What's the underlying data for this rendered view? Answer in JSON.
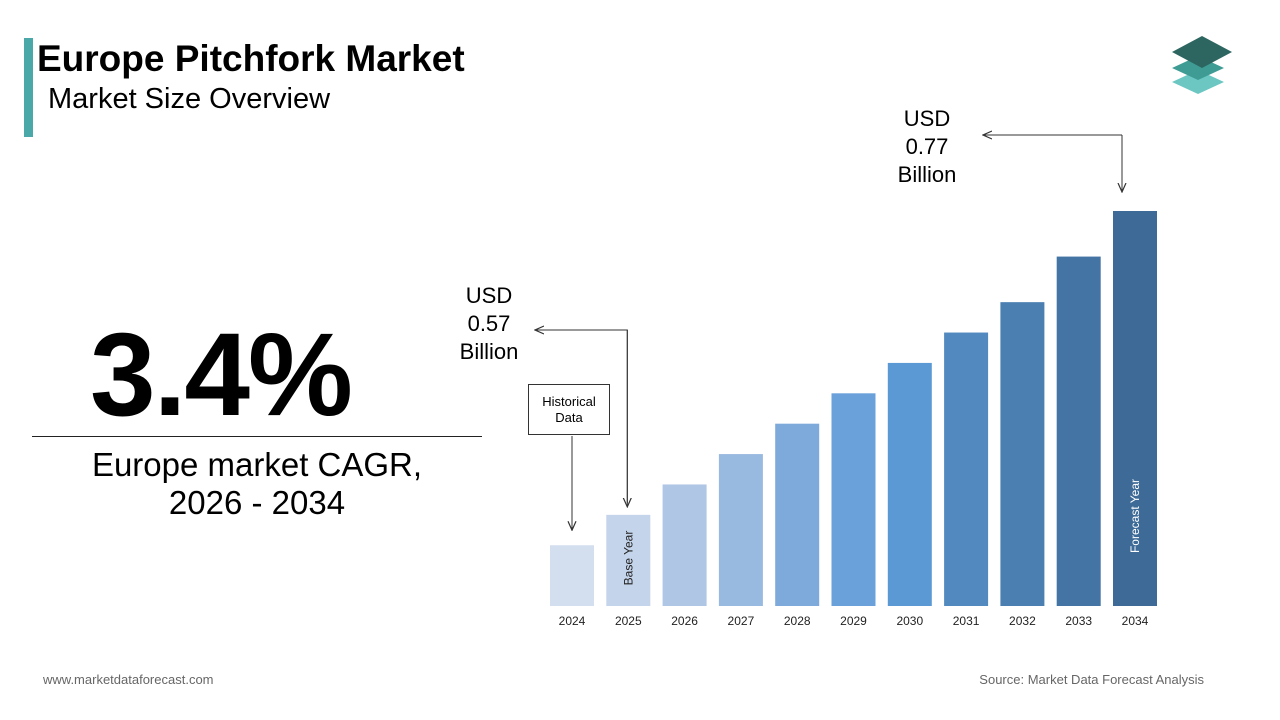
{
  "header": {
    "title": "Europe Pitchfork Market",
    "subtitle": "Market Size Overview"
  },
  "highlight": {
    "cagr_value": "3.4%",
    "cagr_label_line1": "Europe market CAGR,",
    "cagr_label_line2": "2026 - 2034"
  },
  "callouts": {
    "start": {
      "line1": "USD",
      "line2": "0.57",
      "line3": "Billion"
    },
    "end": {
      "line1": "USD",
      "line2": "0.77",
      "line3": "Billion"
    },
    "historical_box_line1": "Historical",
    "historical_box_line2": "Data",
    "base_year_label": "Base Year",
    "forecast_year_label": "Forecast Year"
  },
  "footer": {
    "website": "www.marketdataforecast.com",
    "source": "Source: Market Data Forecast Analysis"
  },
  "colors": {
    "accent": "#4aa8a8",
    "bar_colors": [
      "#d3deef",
      "#c4d4ea",
      "#afc6e5",
      "#98b9e0",
      "#7eaadb",
      "#6aa1da",
      "#5b99d5",
      "#528ac0",
      "#4b7fb2",
      "#4474a4",
      "#3d6a96"
    ]
  },
  "chart_data": {
    "type": "bar",
    "categories": [
      "2024",
      "2025",
      "2026",
      "2027",
      "2028",
      "2029",
      "2030",
      "2031",
      "2032",
      "2033",
      "2034"
    ],
    "values": [
      0.55,
      0.57,
      0.59,
      0.61,
      0.63,
      0.65,
      0.67,
      0.69,
      0.71,
      0.74,
      0.77
    ],
    "title": "",
    "xlabel": "",
    "ylabel": "",
    "ylim": [
      0.51,
      0.77
    ],
    "unit": "USD Billion",
    "grid": false,
    "annotations": [
      {
        "category": "2025",
        "text": "USD 0.57 Billion"
      },
      {
        "category": "2034",
        "text": "USD 0.77 Billion"
      }
    ]
  }
}
